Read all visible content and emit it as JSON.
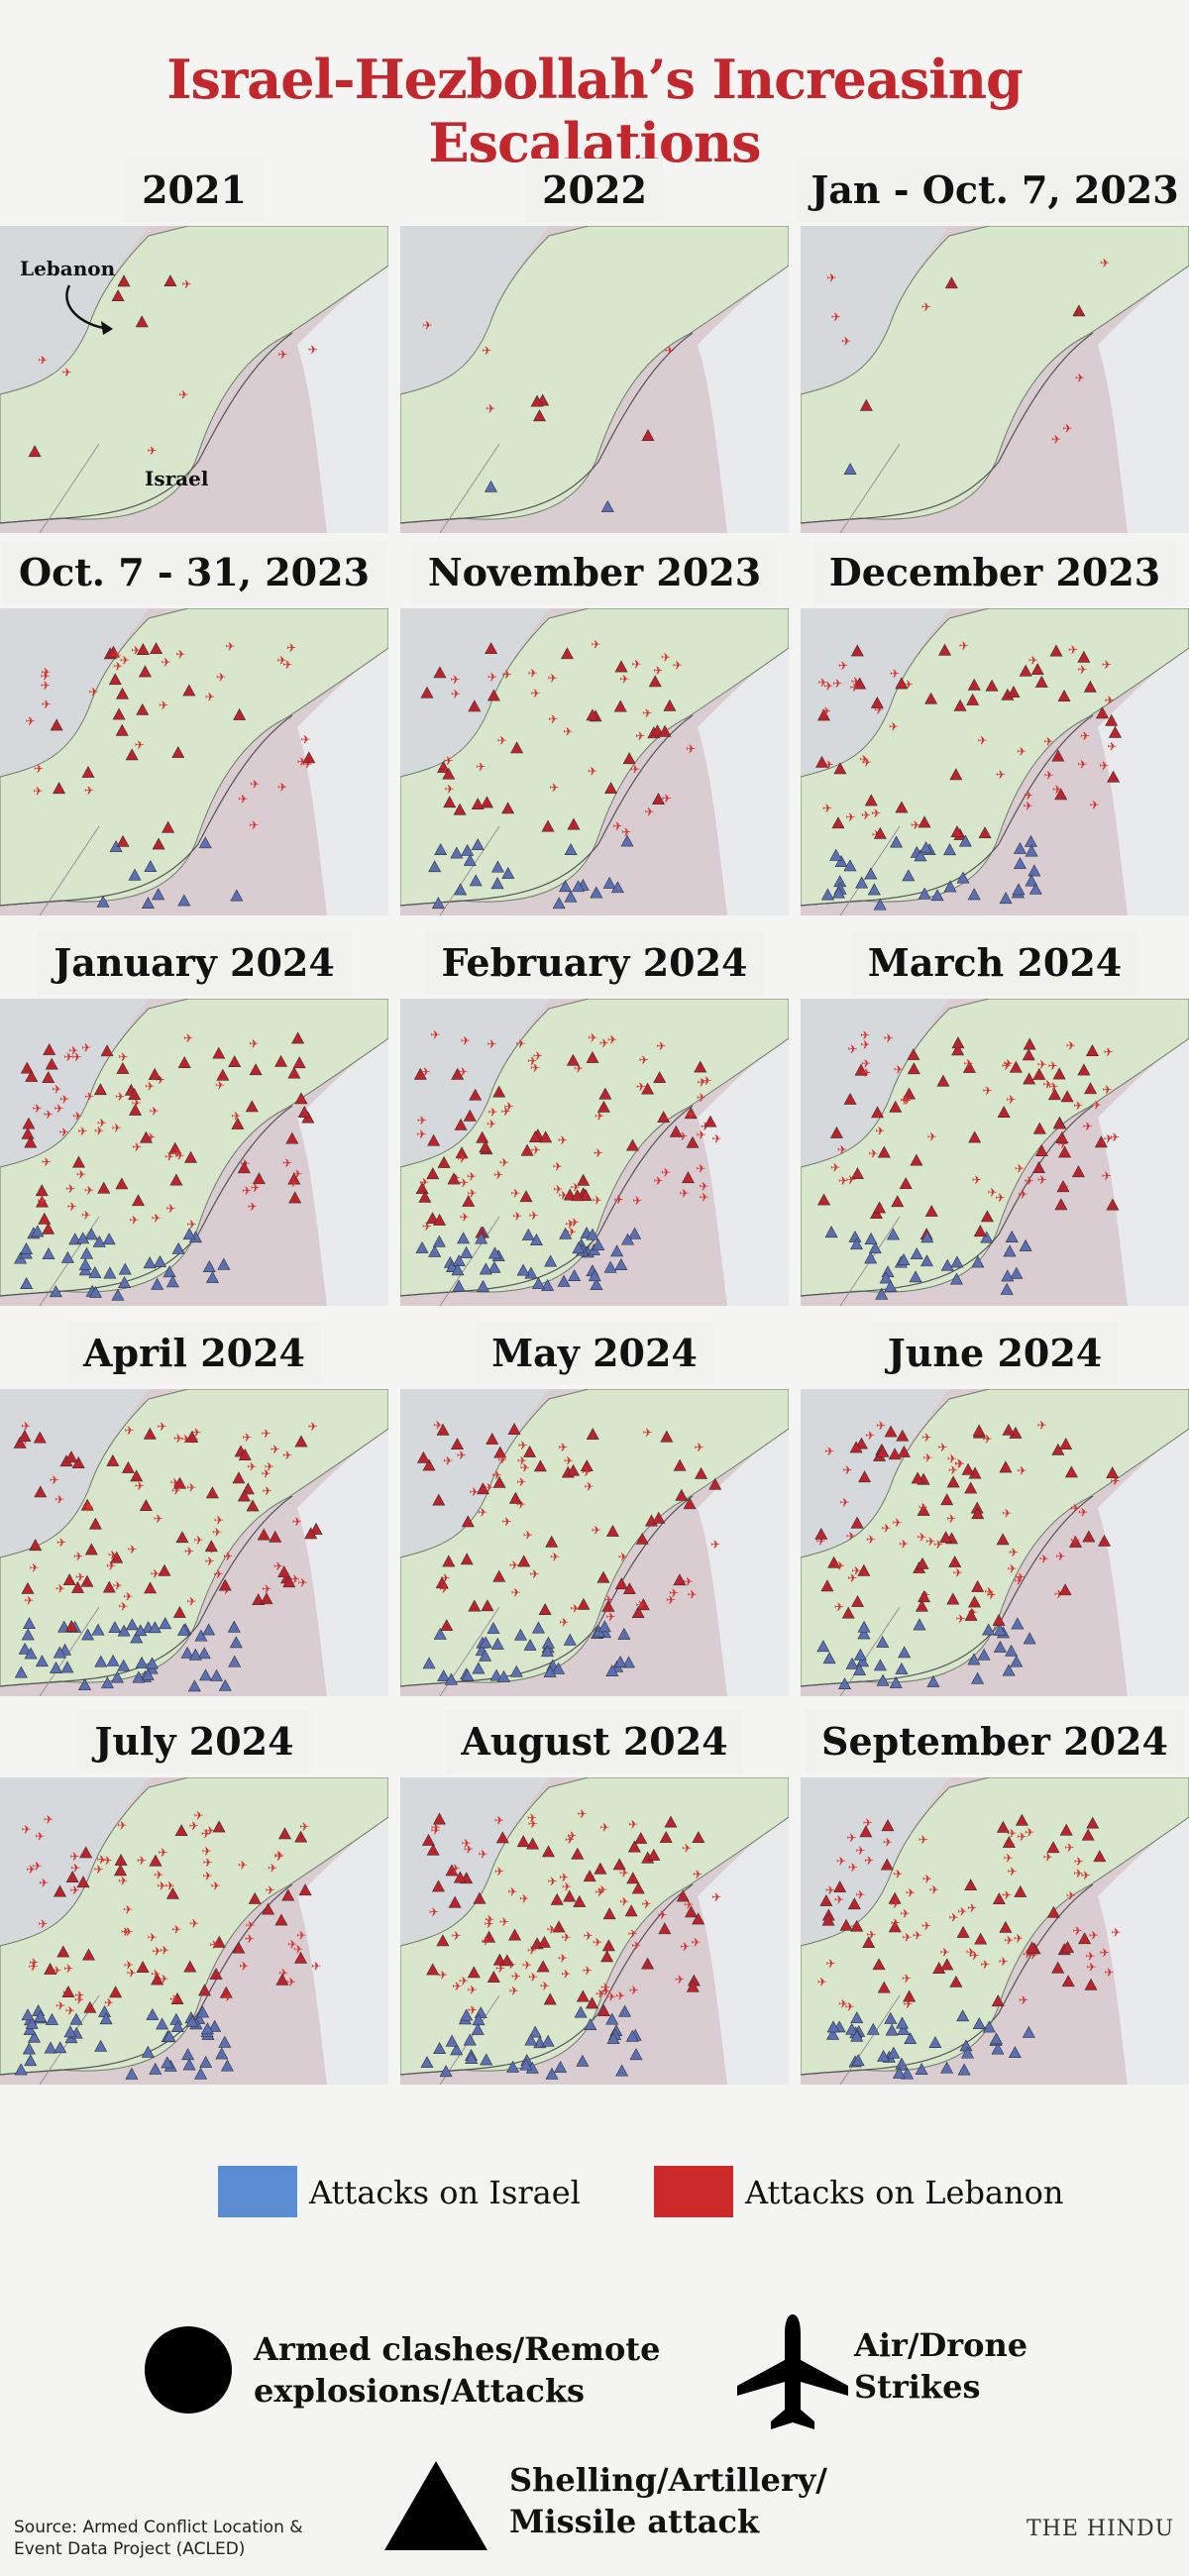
{
  "title": "Israel-Hezbollah’s Increasing Escalations",
  "panels": [
    {
      "label": "2021",
      "annotations": {
        "lebanon": "Lebanon",
        "israel": "Israel"
      }
    },
    {
      "label": "2022"
    },
    {
      "label": "Jan - Oct. 7, 2023"
    },
    {
      "label": "Oct. 7 - 31, 2023"
    },
    {
      "label": "November 2023"
    },
    {
      "label": "December 2023"
    },
    {
      "label": "January 2024"
    },
    {
      "label": "February 2024"
    },
    {
      "label": "March 2024"
    },
    {
      "label": "April 2024"
    },
    {
      "label": "May 2024"
    },
    {
      "label": "June 2024"
    },
    {
      "label": "July 2024"
    },
    {
      "label": "August 2024"
    },
    {
      "label": "September 2024"
    }
  ],
  "legend": {
    "attacks_on_israel": {
      "label": "Attacks on Israel",
      "color": "#5b8bd0"
    },
    "attacks_on_lebanon": {
      "label": "Attacks on Lebanon",
      "color": "#cc2a2a"
    },
    "armed_clashes": {
      "label_line1": "Armed clashes/Remote",
      "label_line2": "explosions/Attacks",
      "icon": "circle"
    },
    "air_drone": {
      "label_line1": "Air/Drone",
      "label_line2": "Strikes",
      "icon": "airplane"
    },
    "shelling": {
      "label_line1": "Shelling/Artillery/",
      "label_line2": "Missile attack",
      "icon": "triangle"
    }
  },
  "source": "Source: Armed Conflict Location & Event Data Project (ACLED)",
  "brand": "THE HINDU",
  "colors": {
    "title": "#c1272d",
    "lebanon_land": "#d8e6cc",
    "israel_land": "#d9cdd2",
    "sea": "#d5d9dc",
    "east_land": "#e9eaeb"
  }
}
